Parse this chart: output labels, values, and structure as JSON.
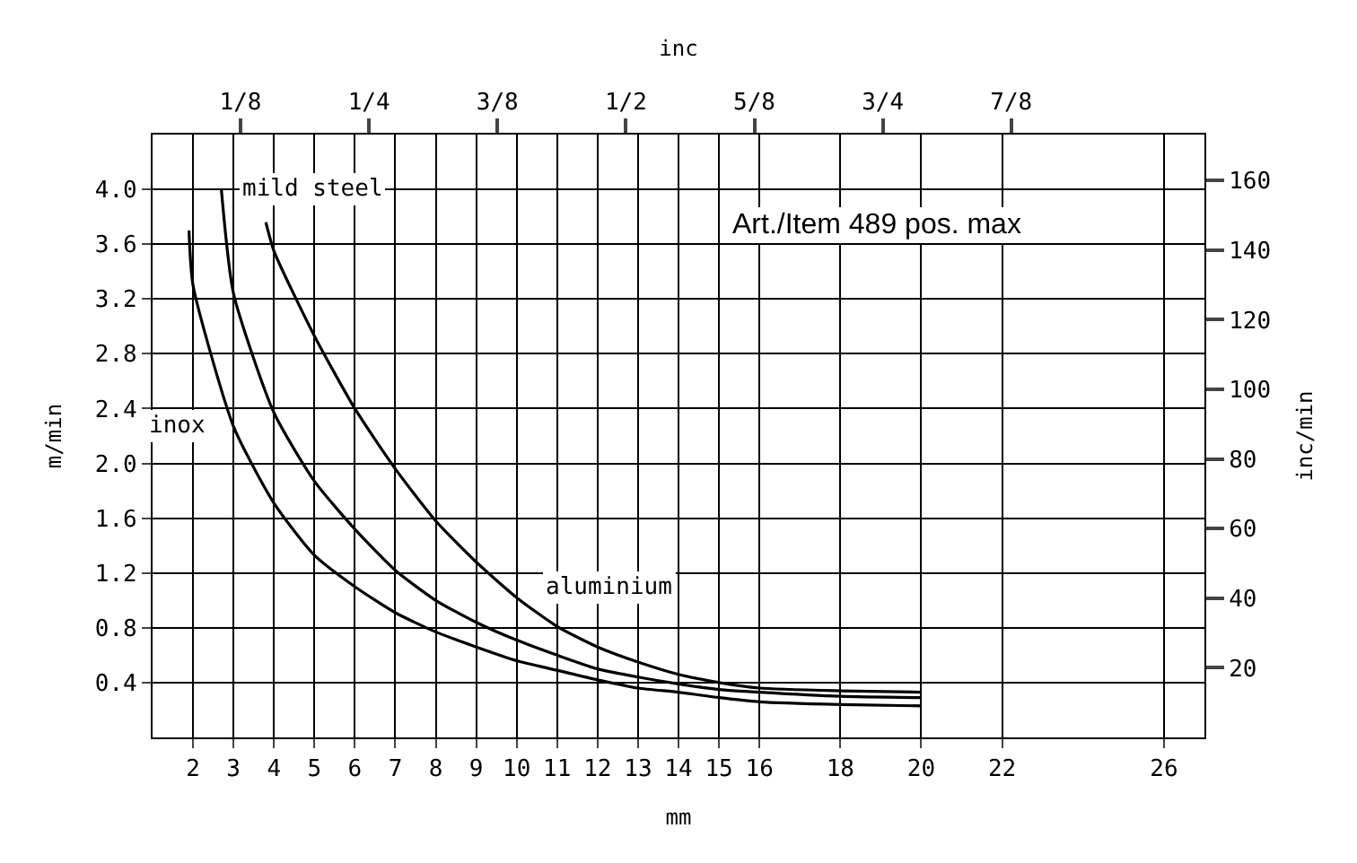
{
  "chart_data": {
    "type": "line",
    "xlabel": "mm",
    "ylabel": "m/min",
    "y2label": "inc/min",
    "x2label": "inc",
    "annotations": [
      "Art./Item 489 pos. max"
    ],
    "xlim": [
      1,
      27
    ],
    "xticks": [
      2,
      3,
      4,
      5,
      6,
      7,
      8,
      9,
      10,
      11,
      12,
      13,
      14,
      15,
      16,
      18,
      20,
      22,
      26
    ],
    "x2lim": [
      0.0394,
      1.063
    ],
    "x2ticks": [
      {
        "value": 0.125,
        "label": "1/8"
      },
      {
        "value": 0.25,
        "label": "1/4"
      },
      {
        "value": 0.375,
        "label": "3/8"
      },
      {
        "value": 0.5,
        "label": "1/2"
      },
      {
        "value": 0.625,
        "label": "5/8"
      },
      {
        "value": 0.75,
        "label": "3/4"
      },
      {
        "value": 0.875,
        "label": "7/8"
      }
    ],
    "ylim": [
      0,
      4.4
    ],
    "yticks": [
      0.4,
      0.8,
      1.2,
      1.6,
      {
        "value": 2,
        "label": "2.0"
      },
      2.4,
      2.8,
      3.2,
      3.6,
      {
        "value": 4,
        "label": "4.0"
      }
    ],
    "y2lim": [
      0,
      173.2
    ],
    "y2ticks": [
      20,
      40,
      60,
      80,
      100,
      120,
      140,
      160
    ],
    "grid": true,
    "legend": false,
    "line_style": "solid",
    "series": [
      {
        "name": "inox",
        "color": "#000000",
        "x": [
          1.9,
          2,
          3,
          4,
          5,
          6,
          7,
          8,
          9,
          10,
          11,
          12,
          13,
          14,
          15,
          16,
          18,
          20
        ],
        "values": [
          3.7,
          3.3,
          2.27,
          1.71,
          1.33,
          1.1,
          0.91,
          0.77,
          0.66,
          0.56,
          0.49,
          0.42,
          0.36,
          0.33,
          0.29,
          0.26,
          0.24,
          0.23
        ]
      },
      {
        "name": "mild steel",
        "color": "#000000",
        "x": [
          2.7,
          3,
          4,
          5,
          6,
          7,
          8,
          9,
          10,
          11,
          12,
          13,
          14,
          15,
          16,
          18,
          20
        ],
        "values": [
          4.0,
          3.24,
          2.37,
          1.87,
          1.52,
          1.22,
          1.0,
          0.84,
          0.71,
          0.6,
          0.5,
          0.44,
          0.39,
          0.35,
          0.33,
          0.3,
          0.29
        ]
      },
      {
        "name": "aluminium",
        "color": "#000000",
        "x": [
          3.8,
          4,
          5,
          6,
          7,
          8,
          9,
          10,
          11,
          12,
          13,
          14,
          15,
          16,
          18,
          20
        ],
        "values": [
          3.76,
          3.55,
          2.93,
          2.4,
          1.96,
          1.58,
          1.28,
          1.02,
          0.81,
          0.66,
          0.55,
          0.46,
          0.4,
          0.36,
          0.34,
          0.33
        ]
      }
    ]
  }
}
